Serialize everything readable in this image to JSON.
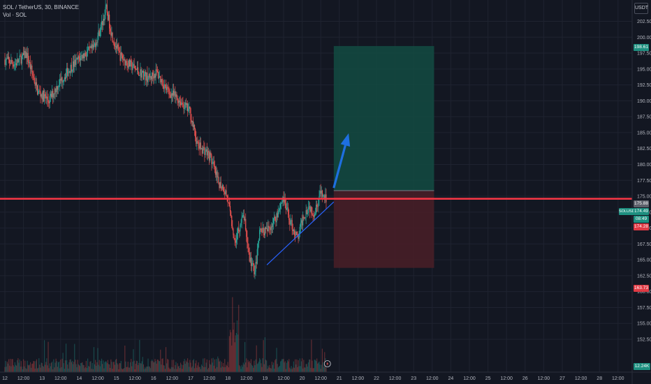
{
  "legend": {
    "symbol_line": "SOL / TetherUS, 30, BINANCE",
    "volume_line": "Vol · SOL"
  },
  "currency_button": "USDT",
  "price_tags": {
    "target": "198.61",
    "current": "175.88",
    "open": "174.49",
    "countdown": "08:49",
    "stop_ref": "174.28",
    "stop": "163.73",
    "volume": "12.24K",
    "symbol": "SOLUSDT"
  },
  "colors": {
    "background": "#131722",
    "up": "#26a69a",
    "down": "#ef5350",
    "resistance_line": "#f23645",
    "trend_line": "#2962ff",
    "arrow": "#1e6fe0",
    "target_zone": "#134b42",
    "stop_zone": "#4a1e27"
  },
  "chart_data": {
    "type": "candlestick",
    "y_axis": {
      "range": [
        151,
        205
      ],
      "ticks": [
        "202.50",
        "200.00",
        "197.50",
        "195.00",
        "192.50",
        "190.00",
        "187.50",
        "185.00",
        "182.50",
        "180.00",
        "177.50",
        "175.00",
        "172.50",
        "170.00",
        "167.50",
        "165.00",
        "162.50",
        "160.00",
        "157.50",
        "155.00",
        "152.50"
      ]
    },
    "x_axis": {
      "ticks": [
        "12",
        "12:00",
        "13",
        "12:00",
        "14",
        "12:00",
        "15",
        "12:00",
        "16",
        "12:00",
        "17",
        "12:00",
        "18",
        "12:00",
        "19",
        "12:00",
        "20",
        "12:00",
        "21",
        "12:00",
        "22",
        "12:00",
        "23",
        "12:00",
        "24",
        "12:00",
        "25",
        "12:00",
        "26",
        "12:00",
        "27",
        "12:00",
        "28",
        "12:00"
      ]
    },
    "price_path": [
      [
        12.0,
        196.5
      ],
      [
        12.3,
        195.8
      ],
      [
        12.6,
        197.4
      ],
      [
        12.9,
        191.5
      ],
      [
        13.2,
        190.0
      ],
      [
        13.5,
        193.0
      ],
      [
        13.8,
        195.3
      ],
      [
        14.1,
        197.1
      ],
      [
        14.4,
        198.2
      ],
      [
        14.6,
        201.5
      ],
      [
        14.75,
        204.5
      ],
      [
        14.9,
        200.3
      ],
      [
        15.1,
        197.2
      ],
      [
        15.3,
        196.0
      ],
      [
        15.6,
        194.7
      ],
      [
        15.9,
        193.5
      ],
      [
        16.1,
        194.5
      ],
      [
        16.4,
        191.5
      ],
      [
        16.7,
        190.2
      ],
      [
        17.0,
        188.3
      ],
      [
        17.2,
        183.0
      ],
      [
        17.4,
        182.2
      ],
      [
        17.55,
        181.2
      ],
      [
        17.75,
        177.3
      ],
      [
        17.9,
        176.4
      ],
      [
        18.0,
        175.0
      ],
      [
        18.2,
        168.0
      ],
      [
        18.45,
        172.0
      ],
      [
        18.6,
        165.2
      ],
      [
        18.75,
        163.1
      ],
      [
        18.9,
        170.2
      ],
      [
        19.05,
        169.3
      ],
      [
        19.3,
        171.5
      ],
      [
        19.5,
        174.8
      ],
      [
        19.7,
        171.0
      ],
      [
        19.9,
        168.2
      ],
      [
        20.05,
        171.8
      ],
      [
        20.2,
        173.5
      ],
      [
        20.35,
        172.3
      ],
      [
        20.5,
        175.4
      ],
      [
        20.65,
        174.6
      ]
    ],
    "resistance_level": 174.6,
    "trendline": [
      [
        19.05,
        164.2
      ],
      [
        20.85,
        174.1
      ]
    ],
    "position": {
      "type": "long",
      "entry": 175.88,
      "target": 198.61,
      "stop": 163.73,
      "start": 20.85,
      "end": 23.55
    },
    "arrow": {
      "from": [
        20.85,
        176.3
      ],
      "to": [
        21.25,
        184.9
      ]
    }
  }
}
